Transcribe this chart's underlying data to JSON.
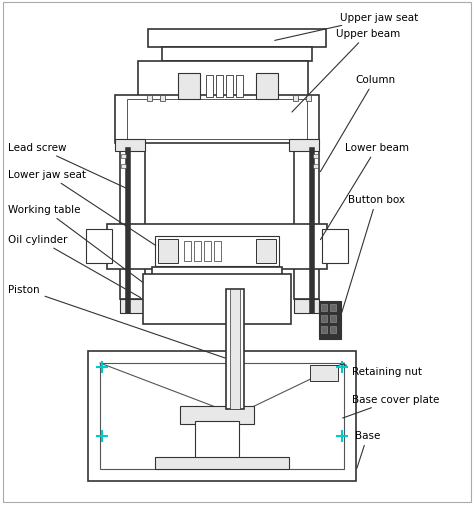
{
  "bg_color": "#ffffff",
  "line_color": "#555555",
  "dark_color": "#333333",
  "accent_color": "#00cccc",
  "gray_fill": "#e8e8e8",
  "labels": {
    "upper_jaw_seat": "Upper jaw seat",
    "upper_beam": "Upper beam",
    "column": "Column",
    "lead_screw": "Lead screw",
    "lower_jaw_seat": "Lower jaw seat",
    "working_table": "Working table",
    "lower_beam": "Lower beam",
    "oil_cylinder": "Oil cylinder",
    "button_box": "Button box",
    "piston": "Piston",
    "retaining_nut": "Retaining nut",
    "base_cover_plate": "Base cover plate",
    "base": "Base"
  },
  "figsize": [
    4.74,
    5.06
  ],
  "dpi": 100
}
